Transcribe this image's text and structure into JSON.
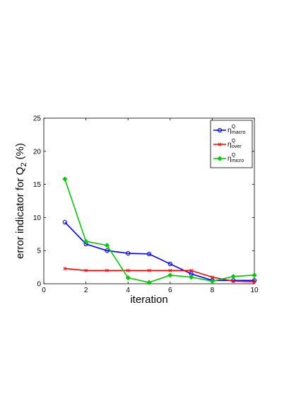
{
  "chart_data": {
    "type": "line",
    "xlabel": "iteration",
    "ylabel": "error indicator for Q",
    "ylabel_subscript": "2",
    "ylabel_suffix": " (%)",
    "xlim": [
      0,
      10
    ],
    "ylim": [
      0,
      25
    ],
    "xticks": [
      0,
      2,
      4,
      6,
      8,
      10
    ],
    "yticks": [
      0,
      5,
      10,
      15,
      20,
      25
    ],
    "grid": false,
    "legend_position": "top-right",
    "series": [
      {
        "name": "η",
        "name_superscript": "Q",
        "name_subscript": "macro",
        "color": "#0000ff",
        "marker": "circle",
        "x": [
          1,
          2,
          3,
          4,
          5,
          6,
          7,
          8,
          9,
          10
        ],
        "y": [
          9.3,
          6.0,
          5.0,
          4.6,
          4.5,
          3.0,
          1.5,
          0.5,
          0.5,
          0.5
        ]
      },
      {
        "name": "η",
        "name_superscript": "Q",
        "name_subscript": "over",
        "color": "#ff0000",
        "marker": "x",
        "x": [
          1,
          2,
          3,
          4,
          5,
          6,
          7,
          8,
          9,
          10
        ],
        "y": [
          2.3,
          2.0,
          2.0,
          2.0,
          2.0,
          2.0,
          2.0,
          1.0,
          0.4,
          0.3
        ]
      },
      {
        "name": "η",
        "name_superscript": "Q",
        "name_subscript": "micro",
        "color": "#00cc00",
        "marker": "diamond",
        "x": [
          1,
          2,
          3,
          4,
          5,
          6,
          7,
          8,
          9,
          10
        ],
        "y": [
          15.8,
          6.4,
          5.8,
          0.9,
          0.2,
          1.3,
          1.0,
          0.4,
          1.1,
          1.3
        ]
      }
    ]
  }
}
